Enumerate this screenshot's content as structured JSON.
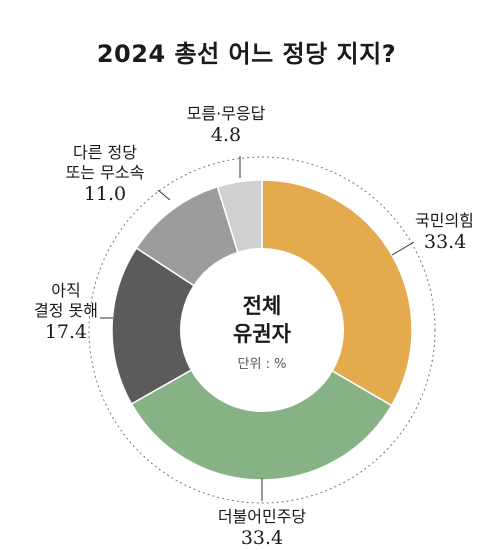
{
  "title": "2024 총선 어느 정당 지지?",
  "chart_data": {
    "type": "pie",
    "center_label": [
      "전체",
      "유권자"
    ],
    "unit_label": "단위 : %",
    "slices": [
      {
        "label": [
          "국민의힘"
        ],
        "value": 33.4,
        "value_text": "33.4",
        "color": "#e3ab4d"
      },
      {
        "label": [
          "더불어민주당"
        ],
        "value": 33.4,
        "value_text": "33.4",
        "color": "#86b285"
      },
      {
        "label": [
          "아직",
          "결정 못해"
        ],
        "value": 17.4,
        "value_text": "17.4",
        "color": "#5b5b5b"
      },
      {
        "label": [
          "다른 정당",
          "또는 무소속"
        ],
        "value": 11.0,
        "value_text": "11.0",
        "color": "#9c9c9c"
      },
      {
        "label": [
          "모름·무응답"
        ],
        "value": 4.8,
        "value_text": "4.8",
        "color": "#cfd1d1"
      }
    ]
  }
}
